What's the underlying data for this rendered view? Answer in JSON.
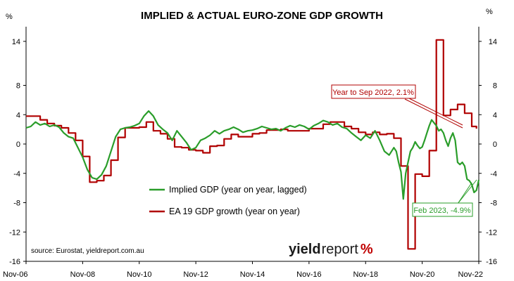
{
  "chart_data": {
    "type": "line",
    "title": "IMPLIED & ACTUAL EURO-ZONE GDP GROWTH",
    "y_unit_left": "%",
    "y_unit_right": "%",
    "ylim": [
      -16,
      16
    ],
    "yticks": [
      14,
      8,
      4,
      0,
      -4,
      -8,
      -12,
      -16
    ],
    "ytick_labels": [
      "14",
      "8",
      "4",
      "0",
      "-4",
      "-8",
      "-12",
      "-16"
    ],
    "x_start": "2006-11",
    "x_end": "2022-11",
    "x_tick_labels": [
      "Nov-06",
      "Nov-08",
      "Nov-10",
      "Nov-12",
      "Nov-14",
      "Nov-16",
      "Nov-18",
      "Nov-20",
      "Nov-22"
    ],
    "x_tick_dates": [
      "2006-11",
      "2008-11",
      "2010-11",
      "2012-11",
      "2014-11",
      "2016-11",
      "2018-11",
      "2020-11",
      "2022-11"
    ],
    "grid": false,
    "legend_position": "center-left",
    "source": "source: Eurostat, yieldreport.com.au",
    "brand": {
      "part1": "yield",
      "part2": "report",
      "symbol": "%",
      "symbol_color": "#c00000"
    },
    "series": [
      {
        "name": "Implied GDP (year on year, lagged)",
        "color": "#2a9d2a",
        "points": [
          [
            "2006-11",
            2.2
          ],
          [
            "2007-01",
            2.4
          ],
          [
            "2007-03",
            3.0
          ],
          [
            "2007-05",
            2.6
          ],
          [
            "2007-07",
            2.8
          ],
          [
            "2007-09",
            2.4
          ],
          [
            "2007-11",
            2.6
          ],
          [
            "2008-01",
            2.3
          ],
          [
            "2008-03",
            1.5
          ],
          [
            "2008-05",
            1.0
          ],
          [
            "2008-07",
            0.8
          ],
          [
            "2008-09",
            -0.5
          ],
          [
            "2008-11",
            -1.8
          ],
          [
            "2009-01",
            -3.5
          ],
          [
            "2009-03",
            -4.6
          ],
          [
            "2009-05",
            -4.8
          ],
          [
            "2009-07",
            -4.2
          ],
          [
            "2009-09",
            -3.0
          ],
          [
            "2009-11",
            -1.0
          ],
          [
            "2010-01",
            1.0
          ],
          [
            "2010-03",
            2.0
          ],
          [
            "2010-05",
            2.2
          ],
          [
            "2010-07",
            2.3
          ],
          [
            "2010-09",
            2.5
          ],
          [
            "2010-11",
            2.8
          ],
          [
            "2011-01",
            3.8
          ],
          [
            "2011-03",
            4.5
          ],
          [
            "2011-05",
            3.8
          ],
          [
            "2011-07",
            2.6
          ],
          [
            "2011-09",
            2.0
          ],
          [
            "2011-11",
            1.5
          ],
          [
            "2012-01",
            0.5
          ],
          [
            "2012-03",
            1.8
          ],
          [
            "2012-05",
            1.0
          ],
          [
            "2012-07",
            0.2
          ],
          [
            "2012-09",
            -0.8
          ],
          [
            "2012-11",
            -0.5
          ],
          [
            "2013-01",
            0.5
          ],
          [
            "2013-03",
            0.8
          ],
          [
            "2013-05",
            1.2
          ],
          [
            "2013-07",
            1.8
          ],
          [
            "2013-09",
            1.4
          ],
          [
            "2013-11",
            1.8
          ],
          [
            "2014-01",
            2.0
          ],
          [
            "2014-03",
            2.3
          ],
          [
            "2014-05",
            2.0
          ],
          [
            "2014-07",
            1.6
          ],
          [
            "2014-09",
            1.8
          ],
          [
            "2014-11",
            1.9
          ],
          [
            "2015-01",
            2.1
          ],
          [
            "2015-03",
            2.4
          ],
          [
            "2015-05",
            2.2
          ],
          [
            "2015-07",
            2.0
          ],
          [
            "2015-09",
            2.1
          ],
          [
            "2015-11",
            1.8
          ],
          [
            "2016-01",
            2.2
          ],
          [
            "2016-03",
            2.5
          ],
          [
            "2016-05",
            2.3
          ],
          [
            "2016-07",
            2.6
          ],
          [
            "2016-09",
            2.4
          ],
          [
            "2016-11",
            2.0
          ],
          [
            "2017-01",
            2.5
          ],
          [
            "2017-03",
            2.8
          ],
          [
            "2017-05",
            3.2
          ],
          [
            "2017-07",
            3.0
          ],
          [
            "2017-09",
            2.6
          ],
          [
            "2017-11",
            2.8
          ],
          [
            "2018-01",
            2.3
          ],
          [
            "2018-03",
            2.1
          ],
          [
            "2018-05",
            1.5
          ],
          [
            "2018-07",
            1.0
          ],
          [
            "2018-09",
            0.5
          ],
          [
            "2018-11",
            1.2
          ],
          [
            "2019-01",
            0.8
          ],
          [
            "2019-03",
            1.8
          ],
          [
            "2019-05",
            0.5
          ],
          [
            "2019-07",
            -1.0
          ],
          [
            "2019-09",
            -1.5
          ],
          [
            "2019-11",
            -0.5
          ],
          [
            "2019-12",
            -1.0
          ],
          [
            "2020-01",
            -2.5
          ],
          [
            "2020-02",
            -3.8
          ],
          [
            "2020-03",
            -7.5
          ],
          [
            "2020-04",
            -4.0
          ],
          [
            "2020-05",
            -2.5
          ],
          [
            "2020-06",
            -1.0
          ],
          [
            "2020-07",
            -0.5
          ],
          [
            "2020-08",
            0.3
          ],
          [
            "2020-09",
            -0.2
          ],
          [
            "2020-10",
            -0.6
          ],
          [
            "2020-11",
            -0.4
          ],
          [
            "2020-12",
            0.5
          ],
          [
            "2021-01",
            1.5
          ],
          [
            "2021-02",
            2.5
          ],
          [
            "2021-03",
            3.3
          ],
          [
            "2021-05",
            2.5
          ],
          [
            "2021-06",
            1.8
          ],
          [
            "2021-07",
            2.0
          ],
          [
            "2021-08",
            1.5
          ],
          [
            "2021-09",
            0.5
          ],
          [
            "2021-10",
            -0.3
          ],
          [
            "2021-11",
            0.8
          ],
          [
            "2021-12",
            1.5
          ],
          [
            "2022-01",
            0.5
          ],
          [
            "2022-02",
            -2.5
          ],
          [
            "2022-03",
            -2.8
          ],
          [
            "2022-04",
            -2.5
          ],
          [
            "2022-05",
            -3.0
          ],
          [
            "2022-06",
            -4.8
          ],
          [
            "2022-07",
            -5.0
          ],
          [
            "2022-08",
            -5.5
          ],
          [
            "2022-09",
            -6.6
          ],
          [
            "2022-10",
            -6.3
          ],
          [
            "2022-11",
            -4.9
          ]
        ]
      },
      {
        "name": "EA 19 GDP growth (year on year)",
        "color": "#b00000",
        "points": [
          [
            "2006-11",
            3.8
          ],
          [
            "2007-02",
            3.8
          ],
          [
            "2007-05",
            3.3
          ],
          [
            "2007-08",
            2.8
          ],
          [
            "2007-11",
            2.5
          ],
          [
            "2008-02",
            2.2
          ],
          [
            "2008-05",
            1.5
          ],
          [
            "2008-08",
            0.5
          ],
          [
            "2008-11",
            -1.7
          ],
          [
            "2009-02",
            -5.2
          ],
          [
            "2009-05",
            -5.0
          ],
          [
            "2009-08",
            -4.3
          ],
          [
            "2009-11",
            -2.2
          ],
          [
            "2010-02",
            0.9
          ],
          [
            "2010-05",
            2.2
          ],
          [
            "2010-08",
            2.2
          ],
          [
            "2010-11",
            2.3
          ],
          [
            "2011-02",
            3.0
          ],
          [
            "2011-05",
            1.8
          ],
          [
            "2011-08",
            1.4
          ],
          [
            "2011-11",
            0.7
          ],
          [
            "2012-02",
            -0.4
          ],
          [
            "2012-05",
            -0.5
          ],
          [
            "2012-08",
            -0.8
          ],
          [
            "2012-11",
            -0.9
          ],
          [
            "2013-02",
            -1.2
          ],
          [
            "2013-05",
            -0.3
          ],
          [
            "2013-08",
            -0.2
          ],
          [
            "2013-11",
            0.7
          ],
          [
            "2014-02",
            1.3
          ],
          [
            "2014-05",
            1.0
          ],
          [
            "2014-08",
            1.0
          ],
          [
            "2014-11",
            1.4
          ],
          [
            "2015-02",
            1.5
          ],
          [
            "2015-05",
            1.9
          ],
          [
            "2015-08",
            1.9
          ],
          [
            "2015-11",
            2.0
          ],
          [
            "2016-02",
            1.8
          ],
          [
            "2016-05",
            1.8
          ],
          [
            "2016-08",
            1.8
          ],
          [
            "2016-11",
            2.1
          ],
          [
            "2017-02",
            2.1
          ],
          [
            "2017-05",
            2.7
          ],
          [
            "2017-08",
            3.0
          ],
          [
            "2017-11",
            3.0
          ],
          [
            "2018-02",
            2.4
          ],
          [
            "2018-05",
            2.1
          ],
          [
            "2018-08",
            1.6
          ],
          [
            "2018-11",
            1.3
          ],
          [
            "2019-02",
            1.6
          ],
          [
            "2019-05",
            1.3
          ],
          [
            "2019-08",
            1.4
          ],
          [
            "2019-11",
            0.8
          ],
          [
            "2020-02",
            -3.0
          ],
          [
            "2020-05",
            -14.3
          ],
          [
            "2020-08",
            -4.1
          ],
          [
            "2020-11",
            -4.4
          ],
          [
            "2021-02",
            -0.9
          ],
          [
            "2021-05",
            14.2
          ],
          [
            "2021-08",
            3.9
          ],
          [
            "2021-11",
            4.7
          ],
          [
            "2022-02",
            5.4
          ],
          [
            "2022-05",
            4.2
          ],
          [
            "2022-08",
            2.4
          ],
          [
            "2022-10",
            2.1
          ]
        ]
      }
    ],
    "annotations": [
      {
        "text": "Year to Sep 2022, 2.1%",
        "color": "#b00000",
        "point": [
          "2022-10",
          2.1
        ]
      },
      {
        "text": "Feb 2023, -4.9%",
        "color": "#2a9d2a",
        "point": [
          "2022-11",
          -4.9
        ]
      }
    ]
  }
}
